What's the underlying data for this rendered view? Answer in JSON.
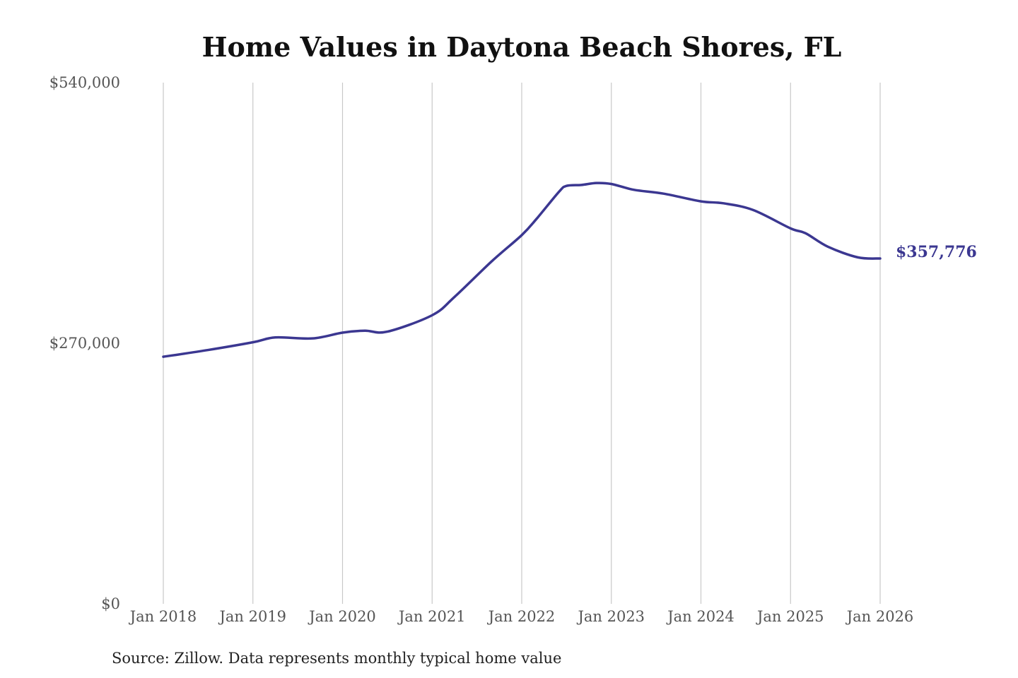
{
  "chart_data": {
    "type": "line",
    "title": "Home Values in Daytona Beach Shores, FL",
    "xlabel": "",
    "ylabel": "",
    "ylim": [
      0,
      540000
    ],
    "xlim": [
      "2018-01",
      "2026-01"
    ],
    "y_ticks": [
      {
        "value": 0,
        "label": "$0"
      },
      {
        "value": 270000,
        "label": "$270,000"
      },
      {
        "value": 540000,
        "label": "$540,000"
      }
    ],
    "x_ticks": [
      {
        "value": "2018-01",
        "label": "Jan 2018"
      },
      {
        "value": "2019-01",
        "label": "Jan 2019"
      },
      {
        "value": "2020-01",
        "label": "Jan 2020"
      },
      {
        "value": "2021-01",
        "label": "Jan 2021"
      },
      {
        "value": "2022-01",
        "label": "Jan 2022"
      },
      {
        "value": "2023-01",
        "label": "Jan 2023"
      },
      {
        "value": "2024-01",
        "label": "Jan 2024"
      },
      {
        "value": "2025-01",
        "label": "Jan 2025"
      },
      {
        "value": "2026-01",
        "label": "Jan 2026"
      }
    ],
    "grid": {
      "vertical": true,
      "horizontal": false
    },
    "line_color": "#3b3791",
    "end_label": "$357,776",
    "series": [
      {
        "x": [
          "2018-01",
          "2018-07",
          "2019-01",
          "2019-04",
          "2019-09",
          "2020-01",
          "2020-04",
          "2020-07",
          "2021-01",
          "2021-04",
          "2021-09",
          "2022-01",
          "2022-03",
          "2022-06",
          "2022-07",
          "2022-09",
          "2022-11",
          "2023-01",
          "2023-04",
          "2023-08",
          "2024-01",
          "2024-04",
          "2024-08",
          "2025-01",
          "2025-03",
          "2025-06",
          "2025-10",
          "2026-01"
        ],
        "values": [
          256000,
          263000,
          271000,
          276000,
          275000,
          281000,
          283000,
          282000,
          299000,
          318000,
          355000,
          382000,
          399000,
          427000,
          433000,
          434000,
          436000,
          435000,
          429000,
          425000,
          417000,
          415000,
          408000,
          389000,
          384000,
          370000,
          359000,
          357776
        ]
      }
    ]
  },
  "source": "Source: Zillow. Data represents monthly typical home value"
}
